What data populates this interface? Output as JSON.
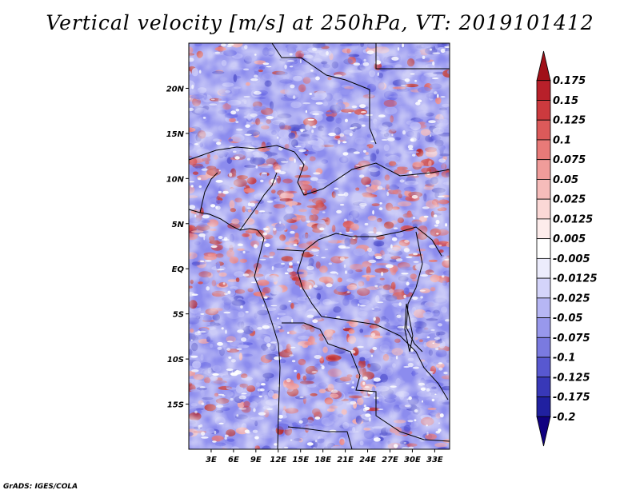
{
  "title": "Vertical velocity [m/s] at 250hPa, VT: 2019101412",
  "footer": "GrADS: IGES/COLA",
  "map": {
    "lon_range": [
      0,
      35
    ],
    "lat_range": [
      -20,
      25
    ],
    "lat_ticks": [
      {
        "lat": 20,
        "label": "20N"
      },
      {
        "lat": 15,
        "label": "15N"
      },
      {
        "lat": 10,
        "label": "10N"
      },
      {
        "lat": 5,
        "label": "5N"
      },
      {
        "lat": 0,
        "label": "EQ"
      },
      {
        "lat": -5,
        "label": "5S"
      },
      {
        "lat": -10,
        "label": "10S"
      },
      {
        "lat": -15,
        "label": "15S"
      }
    ],
    "lon_ticks": [
      {
        "lon": 3,
        "label": "3E"
      },
      {
        "lon": 6,
        "label": "6E"
      },
      {
        "lon": 9,
        "label": "9E"
      },
      {
        "lon": 12,
        "label": "12E"
      },
      {
        "lon": 15,
        "label": "15E"
      },
      {
        "lon": 18,
        "label": "18E"
      },
      {
        "lon": 21,
        "label": "21E"
      },
      {
        "lon": 24,
        "label": "24E"
      },
      {
        "lon": 27,
        "label": "27E"
      },
      {
        "lon": 30,
        "label": "30E"
      },
      {
        "lon": 33,
        "label": "33E"
      }
    ]
  },
  "colorbar": {
    "labels": [
      "0.175",
      "0.15",
      "0.125",
      "0.1",
      "0.075",
      "0.05",
      "0.025",
      "0.0125",
      "0.005",
      "-0.005",
      "-0.0125",
      "-0.025",
      "-0.05",
      "-0.075",
      "-0.1",
      "-0.125",
      "-0.175",
      "-0.2"
    ],
    "colors": [
      "#a01018",
      "#b8202a",
      "#cc3a3e",
      "#dc5a5a",
      "#e87a78",
      "#f09c9a",
      "#f6bcba",
      "#fbd8d6",
      "#fdeceb",
      "#ffffff",
      "#ececfc",
      "#d4d4fa",
      "#b6b6f4",
      "#9898ec",
      "#7a7ae0",
      "#5858d0",
      "#3838b8",
      "#2020a0",
      "#100080"
    ]
  }
}
